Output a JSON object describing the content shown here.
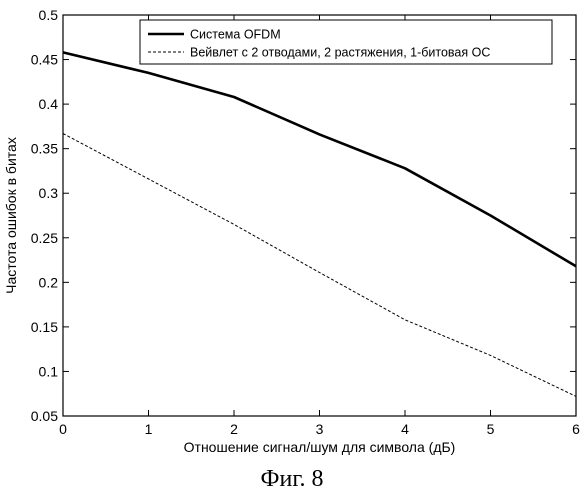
{
  "caption": "Фиг. 8",
  "chart_data": {
    "type": "line",
    "title": "",
    "xlabel": "Отношение сигнал/шум для символа (дБ)",
    "ylabel": "Частота ошибок в битах",
    "xlim": [
      0,
      6
    ],
    "ylim": [
      0.05,
      0.5
    ],
    "xticks": [
      0,
      1,
      2,
      3,
      4,
      5,
      6
    ],
    "yticks": [
      0.05,
      0.1,
      0.15,
      0.2,
      0.25,
      0.3,
      0.35,
      0.4,
      0.45,
      0.5
    ],
    "xtick_labels": [
      "0",
      "1",
      "2",
      "3",
      "4",
      "5",
      "6"
    ],
    "ytick_labels": [
      "0.05",
      "0.1",
      "0.15",
      "0.2",
      "0.25",
      "0.3",
      "0.35",
      "0.4",
      "0.45",
      "0.5"
    ],
    "grid": false,
    "legend_position": "top-right",
    "series": [
      {
        "name": "Система OFDM",
        "style": "solid",
        "color": "#000000",
        "x": [
          0,
          1,
          2,
          3,
          4,
          5,
          6
        ],
        "y": [
          0.458,
          0.435,
          0.408,
          0.366,
          0.328,
          0.275,
          0.218
        ]
      },
      {
        "name": "Вейвлет с 2 отводами, 2 растяжения, 1-битовая ОС",
        "style": "dashed",
        "color": "#000000",
        "x": [
          0,
          2,
          3,
          4,
          5,
          6
        ],
        "y": [
          0.367,
          0.265,
          0.211,
          0.158,
          0.118,
          0.072
        ]
      }
    ]
  }
}
